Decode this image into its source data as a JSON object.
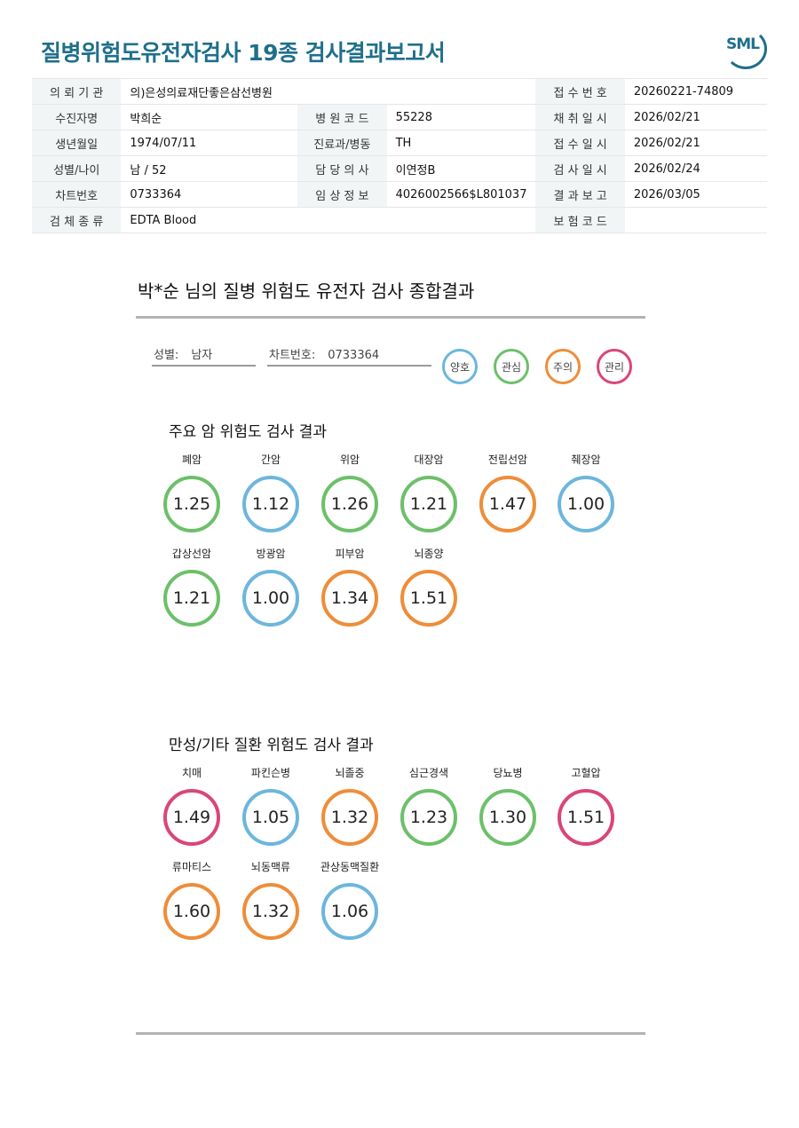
{
  "header": {
    "title": "질병위험도유전자검사 19종 검사결과보고서",
    "logo_text": "SML"
  },
  "colors": {
    "good": "#6db6dc",
    "interest": "#6cc06a",
    "caution": "#ee8d3a",
    "manage": "#d9467a",
    "brand": "#1f6f8b"
  },
  "info": {
    "institution_label": "의 뢰 기 관",
    "institution": "의)은성의료재단좋은삼선병원",
    "receipt_no_label": "접 수 번 호",
    "receipt_no": "20260221-74809",
    "patient_label": "수진자명",
    "patient": "박희순",
    "hospital_code_label": "병 원 코 드",
    "hospital_code": "55228",
    "collect_date_label": "채 취 일 시",
    "collect_date": "2026/02/21",
    "birth_label": "생년월일",
    "birth": "1974/07/11",
    "dept_label": "진료과/병동",
    "dept": "TH",
    "receipt_date_label": "접 수 일 시",
    "receipt_date": "2026/02/21",
    "sex_age_label": "성별/나이",
    "sex_age": "남 / 52",
    "doctor_label": "담 당 의 사",
    "doctor": "이연정B",
    "test_date_label": "검 사 일 시",
    "test_date": "2026/02/24",
    "chart_label": "차트번호",
    "chart": "0733364",
    "clinical_label": "임 상 정 보",
    "clinical": "4026002566$L801037",
    "report_date_label": "결 과 보 고",
    "report_date": "2026/03/05",
    "specimen_label": "검 체 종 류",
    "specimen": "EDTA Blood",
    "insurance_label": "보 험 코 드",
    "insurance": ""
  },
  "summary": {
    "title": "박*순 님의 질병 위험도 유전자 검사 종합결과",
    "sex_label": "성별:",
    "sex": "남자",
    "chart_label": "차트번호:",
    "chart": "0733364",
    "legend": [
      "양호",
      "관심",
      "주의",
      "관리"
    ]
  },
  "cancer": {
    "title": "주요 암 위험도 검사 결과",
    "items": [
      {
        "name": "폐암",
        "value": "1.25",
        "level": "interest"
      },
      {
        "name": "간암",
        "value": "1.12",
        "level": "good"
      },
      {
        "name": "위암",
        "value": "1.26",
        "level": "interest"
      },
      {
        "name": "대장암",
        "value": "1.21",
        "level": "interest"
      },
      {
        "name": "전립선암",
        "value": "1.47",
        "level": "caution"
      },
      {
        "name": "췌장암",
        "value": "1.00",
        "level": "good"
      },
      {
        "name": "갑상선암",
        "value": "1.21",
        "level": "interest"
      },
      {
        "name": "방광암",
        "value": "1.00",
        "level": "good"
      },
      {
        "name": "피부암",
        "value": "1.34",
        "level": "caution"
      },
      {
        "name": "뇌종양",
        "value": "1.51",
        "level": "caution"
      }
    ]
  },
  "chronic": {
    "title": "만성/기타 질환 위험도 검사 결과",
    "items": [
      {
        "name": "치매",
        "value": "1.49",
        "level": "manage"
      },
      {
        "name": "파킨슨병",
        "value": "1.05",
        "level": "good"
      },
      {
        "name": "뇌졸중",
        "value": "1.32",
        "level": "caution"
      },
      {
        "name": "심근경색",
        "value": "1.23",
        "level": "interest"
      },
      {
        "name": "당뇨병",
        "value": "1.30",
        "level": "interest"
      },
      {
        "name": "고혈압",
        "value": "1.51",
        "level": "manage"
      },
      {
        "name": "류마티스",
        "value": "1.60",
        "level": "caution"
      },
      {
        "name": "뇌동맥류",
        "value": "1.32",
        "level": "caution"
      },
      {
        "name": "관상동맥질환",
        "value": "1.06",
        "level": "good"
      }
    ]
  }
}
